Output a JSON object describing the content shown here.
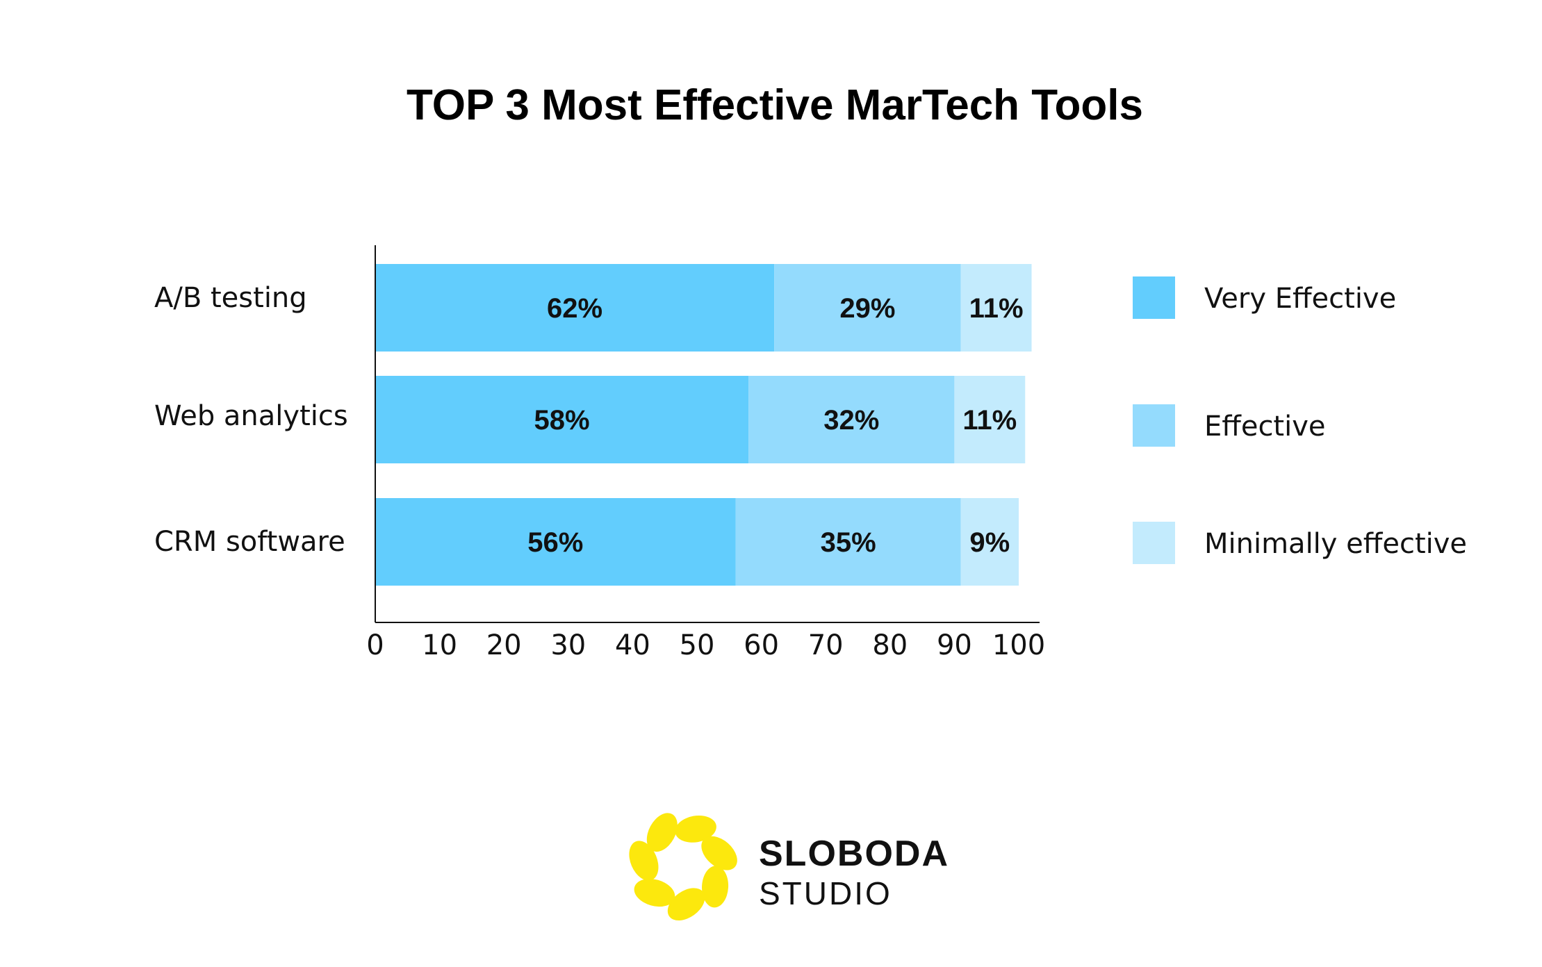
{
  "chart_data": {
    "type": "bar",
    "orientation": "horizontal",
    "stacked": true,
    "title": "TOP 3 Most Effective MarTech Tools",
    "categories": [
      "A/B testing",
      "Web analytics",
      "CRM software"
    ],
    "series": [
      {
        "name": "Very Effective",
        "values": [
          62,
          58,
          56
        ],
        "labels": [
          "62%",
          "58%",
          "56%"
        ],
        "color": "#62cdfd"
      },
      {
        "name": "Effective",
        "values": [
          29,
          32,
          35
        ],
        "labels": [
          "29%",
          "32%",
          "35%"
        ],
        "color": "#94dbfd"
      },
      {
        "name": "Minimally effective",
        "values": [
          11,
          11,
          9
        ],
        "labels": [
          "11%",
          "11%",
          "9%"
        ],
        "color": "#c3ebfd"
      }
    ],
    "xlim": [
      0,
      100
    ],
    "xticks": [
      "0",
      "10",
      "20",
      "30",
      "40",
      "50",
      "60",
      "70",
      "80",
      "90",
      "100"
    ],
    "grid": false,
    "legend_position": "right"
  },
  "brand": {
    "name": "SLOBODA",
    "sub": "STUDIO",
    "color": "#fce80d"
  }
}
